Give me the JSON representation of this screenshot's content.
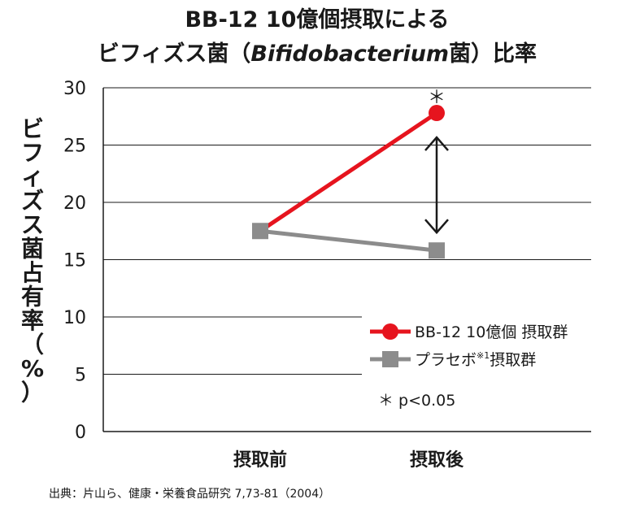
{
  "chart_data": {
    "type": "line",
    "title_line1": "BB-12 10億個摂取による",
    "title_line2_pre": "ビフィズス菌（",
    "title_line2_italic": "Bifidobacterium",
    "title_line2_post": "菌）比率",
    "ylabel_chars": [
      "ビ",
      "フ",
      "ィ",
      "ズ",
      "ス",
      "菌",
      "占",
      "有",
      "率",
      "（",
      "%",
      "）"
    ],
    "ylim": [
      0,
      30
    ],
    "yticks": [
      0,
      5,
      10,
      15,
      20,
      25,
      30
    ],
    "yticks_labels": [
      "0",
      "5",
      "10",
      "15",
      "20",
      "25",
      "30"
    ],
    "categories": [
      "摂取前",
      "摂取後"
    ],
    "grid": true,
    "legend_position": "lower-right",
    "series": [
      {
        "name": "BB-12 10億個 摂取群",
        "values": [
          17.5,
          27.8
        ],
        "color": "#e6141e",
        "marker": "circle"
      },
      {
        "name": "プラセボ",
        "name_superscript": "※1",
        "name_suffix": "摂取群",
        "values": [
          17.5,
          15.8
        ],
        "color": "#8c8c8c",
        "marker": "square"
      }
    ],
    "significance_marker": "＊",
    "significance_note": "＊ p<0.05",
    "source": "出典：片山ら、健康・栄養食品研究 7,73-81（2004）"
  }
}
